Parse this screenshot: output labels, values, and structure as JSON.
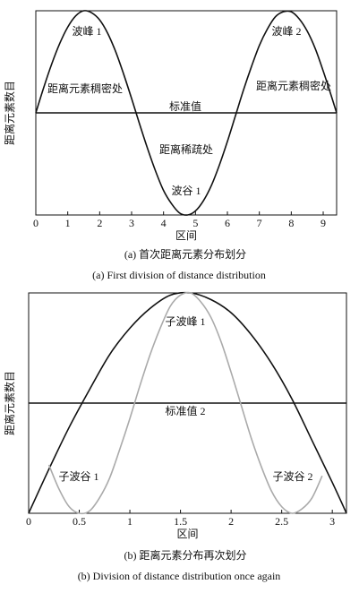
{
  "chart_data": [
    {
      "type": "line",
      "x_label": "区间",
      "y_label": "距离元素数目",
      "caption": "(a)  首次距离元素分布划分",
      "caption_en": "(a) First division of distance distribution",
      "xlim": [
        0,
        9.42
      ],
      "ylim": [
        -1,
        1
      ],
      "xticks": [
        0,
        1,
        2,
        3,
        4,
        5,
        6,
        7,
        8,
        9
      ],
      "reference_line": {
        "label": "标准值",
        "value": 0,
        "color": "#111111"
      },
      "annotations": [
        "波峰 1",
        "波峰 2",
        "距离元素稠密处",
        "距离元素稠密处",
        "距离稀疏处",
        "波谷 1"
      ],
      "series": [
        {
          "color": "#111111",
          "x": [
            0,
            0.25,
            0.5,
            0.75,
            1,
            1.25,
            1.5,
            1.75,
            2,
            2.25,
            2.5,
            2.75,
            3,
            3.25,
            3.5,
            3.75,
            4,
            4.25,
            4.5,
            4.75,
            5,
            5.25,
            5.5,
            5.75,
            6,
            6.25,
            6.5,
            6.75,
            7,
            7.25,
            7.5,
            7.75,
            8,
            8.25,
            8.5,
            8.75,
            9,
            9.25,
            9.42
          ],
          "values": [
            0,
            0.25,
            0.48,
            0.68,
            0.84,
            0.95,
            1.0,
            0.98,
            0.91,
            0.78,
            0.6,
            0.38,
            0.14,
            -0.11,
            -0.35,
            -0.57,
            -0.76,
            -0.89,
            -0.98,
            -1.0,
            -0.96,
            -0.86,
            -0.71,
            -0.51,
            -0.28,
            -0.03,
            0.22,
            0.45,
            0.66,
            0.82,
            0.94,
            0.99,
            0.99,
            0.92,
            0.8,
            0.63,
            0.41,
            0.17,
            0
          ]
        }
      ]
    },
    {
      "type": "line",
      "x_label": "区间",
      "y_label": "距离元素数目",
      "caption": "(b)  距离元素分布再次划分",
      "caption_en": "(b) Division of distance distribution once again",
      "xlim": [
        0,
        3.14
      ],
      "ylim": [
        0,
        1
      ],
      "xticks": [
        0,
        0.5,
        1,
        1.5,
        2,
        2.5,
        3
      ],
      "reference_line": {
        "label": "标准值 2",
        "value": 0.5,
        "color": "#111111"
      },
      "annotations": [
        "子波峰 1",
        "子波谷 1",
        "子波谷 2"
      ],
      "series": [
        {
          "color": "#111111",
          "x": [
            0,
            0.2,
            0.4,
            0.6,
            0.8,
            1.0,
            1.2,
            1.4,
            1.6,
            1.8,
            2.0,
            2.2,
            2.4,
            2.6,
            2.8,
            3.0,
            3.14
          ],
          "values": [
            0,
            0.2,
            0.39,
            0.56,
            0.72,
            0.84,
            0.93,
            0.99,
            1.0,
            0.97,
            0.91,
            0.81,
            0.68,
            0.52,
            0.33,
            0.14,
            0
          ]
        },
        {
          "color": "#aaaaaa",
          "x": [
            0.2,
            0.3,
            0.4,
            0.5,
            0.6,
            0.7,
            0.8,
            0.9,
            1.0,
            1.1,
            1.2,
            1.3,
            1.4,
            1.5,
            1.6,
            1.7,
            1.8,
            1.9,
            2.0,
            2.1,
            2.2,
            2.3,
            2.4,
            2.5,
            2.6,
            2.7,
            2.8,
            2.9
          ],
          "values": [
            0.22,
            0.11,
            0.03,
            0,
            0.01,
            0.07,
            0.16,
            0.29,
            0.43,
            0.58,
            0.72,
            0.84,
            0.94,
            0.99,
            1.0,
            0.96,
            0.89,
            0.78,
            0.64,
            0.49,
            0.34,
            0.21,
            0.1,
            0.03,
            0,
            0.02,
            0.07,
            0.17
          ]
        }
      ]
    }
  ]
}
